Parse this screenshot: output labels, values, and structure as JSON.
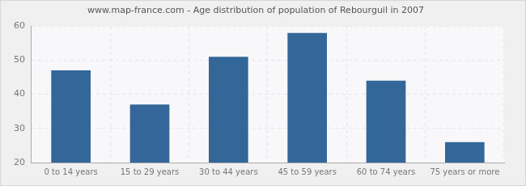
{
  "chart_data": {
    "type": "bar",
    "title": "www.map-france.com - Age distribution of population of Rebourguil in 2007",
    "categories": [
      "0 to 14 years",
      "15 to 29 years",
      "30 to 44 years",
      "45 to 59 years",
      "60 to 74 years",
      "75 years or more"
    ],
    "values": [
      47,
      37,
      51,
      58,
      44,
      26
    ],
    "color": "#336699",
    "ylim": [
      20,
      60
    ],
    "yticks": [
      20,
      30,
      40,
      50,
      60
    ],
    "grid": true
  }
}
